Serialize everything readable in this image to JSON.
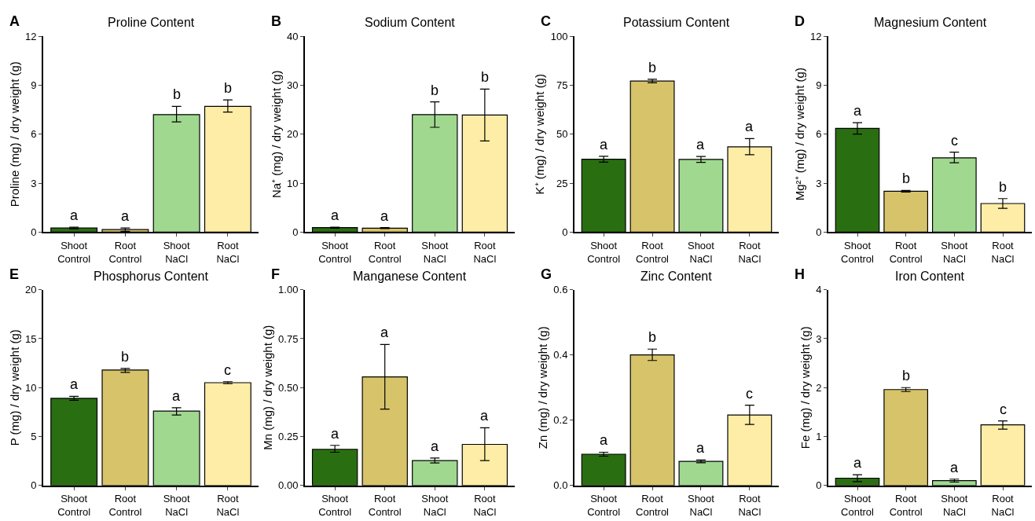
{
  "chart_data": [
    {
      "type": "bar",
      "title": "Proline Content",
      "ylabel": "Proline (mg) / dry weight (g)",
      "categories": [
        "Shoot\nControl",
        "Root\nControl",
        "Shoot\nNaCl",
        "Root\nNaCl"
      ],
      "colors": [
        "#2a6e12",
        "#d7c36a",
        "#a0d890",
        "#fdeda6"
      ],
      "values": [
        0.25,
        0.15,
        7.2,
        7.7
      ],
      "errors": [
        0.05,
        0.1,
        [
          6.75,
          7.7
        ],
        [
          7.35,
          8.1
        ]
      ],
      "ylim": [
        0,
        12
      ],
      "yticks": [
        0,
        3,
        6,
        9,
        12
      ],
      "annotations": [
        "A",
        {
          "text": "a",
          "x": "Shoot\nControl",
          "y": 0.3
        },
        {
          "text": "a",
          "x": "Root\nControl",
          "y": 0.25
        },
        {
          "text": "b",
          "x": "Shoot\nNaCl",
          "y": 7.7
        },
        {
          "text": "b",
          "x": "Root\nNaCl",
          "y": 8.1
        }
      ]
    },
    {
      "type": "bar",
      "title": "Sodium Content",
      "ylabel": "Na⁺ (mg) / dry weight (g)",
      "categories": [
        "Shoot\nControl",
        "Root\nControl",
        "Shoot\nNaCl",
        "Root\nNaCl"
      ],
      "colors": [
        "#2a6e12",
        "#d7c36a",
        "#a0d890",
        "#fdeda6"
      ],
      "values": [
        0.9,
        0.8,
        24,
        23.9
      ],
      "errors": [
        0.1,
        0.1,
        [
          21.4,
          26.6
        ],
        [
          18.6,
          29.2
        ]
      ],
      "ylim": [
        0,
        40
      ],
      "yticks": [
        0,
        10,
        20,
        30,
        40
      ],
      "annotations": [
        "B",
        {
          "text": "a",
          "x": "Shoot\nControl",
          "y": 1
        },
        {
          "text": "a",
          "x": "Root\nControl",
          "y": 0.9
        },
        {
          "text": "b",
          "x": "Shoot\nNaCl",
          "y": 26.6
        },
        {
          "text": "b",
          "x": "Root\nNaCl",
          "y": 29.2
        }
      ]
    },
    {
      "type": "bar",
      "title": "Potassium Content",
      "ylabel": "K⁺ (mg) / dry weight (g)",
      "categories": [
        "Shoot\nControl",
        "Root\nControl",
        "Shoot\nNaCl",
        "Root\nNaCl"
      ],
      "colors": [
        "#2a6e12",
        "#d7c36a",
        "#a0d890",
        "#fdeda6"
      ],
      "values": [
        37.2,
        77.1,
        37.1,
        43.5
      ],
      "errors": [
        [
          35.7,
          38.7
        ],
        [
          76.2,
          78
        ],
        [
          35.6,
          38.6
        ],
        [
          39.5,
          47.7
        ]
      ],
      "ylim": [
        0,
        100
      ],
      "yticks": [
        0,
        25,
        50,
        75,
        100
      ],
      "annotations": [
        "C",
        {
          "text": "a",
          "x": "Shoot\nControl",
          "y": 38.7
        },
        {
          "text": "b",
          "x": "Root\nControl",
          "y": 78
        },
        {
          "text": "a",
          "x": "Shoot\nNaCl",
          "y": 38.6
        },
        {
          "text": "a",
          "x": "Root\nNaCl",
          "y": 47.7
        }
      ]
    },
    {
      "type": "bar",
      "title": "Magnesium Content",
      "ylabel": "Mg²⁺ (mg) / dry weight (g)",
      "categories": [
        "Shoot\nControl",
        "Root\nControl",
        "Shoot\nNaCl",
        "Root\nNaCl"
      ],
      "colors": [
        "#2a6e12",
        "#d7c36a",
        "#a0d890",
        "#fdeda6"
      ],
      "values": [
        6.35,
        2.5,
        4.55,
        1.75
      ],
      "errors": [
        [
          6.0,
          6.7
        ],
        [
          2.45,
          2.55
        ],
        [
          4.25,
          4.9
        ],
        [
          1.45,
          2.05
        ]
      ],
      "ylim": [
        0,
        12
      ],
      "yticks": [
        0,
        3,
        6,
        9,
        12
      ],
      "annotations": [
        "D",
        {
          "text": "a",
          "x": "Shoot\nControl",
          "y": 6.7
        },
        {
          "text": "b",
          "x": "Root\nControl",
          "y": 2.55
        },
        {
          "text": "c",
          "x": "Shoot\nNaCl",
          "y": 4.9
        },
        {
          "text": "b",
          "x": "Root\nNaCl",
          "y": 2.05
        }
      ]
    },
    {
      "type": "bar",
      "title": "Phosphorus Content",
      "ylabel": "P (mg) / dry weight (g)",
      "categories": [
        "Shoot\nControl",
        "Root\nControl",
        "Shoot\nNaCl",
        "Root\nNaCl"
      ],
      "colors": [
        "#2a6e12",
        "#d7c36a",
        "#a0d890",
        "#fdeda6"
      ],
      "values": [
        8.9,
        11.8,
        7.6,
        10.5
      ],
      "errors": [
        [
          8.7,
          9.1
        ],
        [
          11.55,
          11.95
        ],
        [
          7.2,
          7.95
        ],
        [
          10.4,
          10.6
        ]
      ],
      "ylim": [
        0,
        20
      ],
      "yticks": [
        0,
        5,
        10,
        15,
        20
      ],
      "annotations": [
        "E",
        {
          "text": "a",
          "x": "Shoot\nControl",
          "y": 9.1
        },
        {
          "text": "b",
          "x": "Root\nControl",
          "y": 11.95
        },
        {
          "text": "a",
          "x": "Shoot\nNaCl",
          "y": 7.95
        },
        {
          "text": "c",
          "x": "Root\nNaCl",
          "y": 10.6
        }
      ]
    },
    {
      "type": "bar",
      "title": "Manganese Content",
      "ylabel": "Mn (mg) / dry weight (g)",
      "categories": [
        "Shoot\nControl",
        "Root\nControl",
        "Shoot\nNaCl",
        "Root\nNaCl"
      ],
      "colors": [
        "#2a6e12",
        "#d7c36a",
        "#a0d890",
        "#fdeda6"
      ],
      "values": [
        0.185,
        0.555,
        0.127,
        0.21
      ],
      "errors": [
        [
          0.17,
          0.205
        ],
        [
          0.39,
          0.72
        ],
        [
          0.115,
          0.14
        ],
        [
          0.127,
          0.295
        ]
      ],
      "ylim": [
        0,
        1
      ],
      "yticks": [
        {
          "value": 0,
          "label": "0.00"
        },
        {
          "value": 0.25,
          "label": "0.25"
        },
        {
          "value": 0.5,
          "label": "0.50"
        },
        {
          "value": 0.75,
          "label": "0.75"
        },
        {
          "value": 1,
          "label": "1.00"
        }
      ],
      "annotations": [
        "F",
        {
          "text": "a",
          "x": "Shoot\nControl",
          "y": 0.205
        },
        {
          "text": "a",
          "x": "Root\nControl",
          "y": 0.72
        },
        {
          "text": "a",
          "x": "Shoot\nNaCl",
          "y": 0.14
        },
        {
          "text": "a",
          "x": "Root\nNaCl",
          "y": 0.295
        }
      ]
    },
    {
      "type": "bar",
      "title": "Zinc Content",
      "ylabel": "Zn (mg) / dry weight (g)",
      "categories": [
        "Shoot\nControl",
        "Root\nControl",
        "Shoot\nNaCl",
        "Root\nNaCl"
      ],
      "colors": [
        "#2a6e12",
        "#d7c36a",
        "#a0d890",
        "#fdeda6"
      ],
      "values": [
        0.096,
        0.4,
        0.074,
        0.216
      ],
      "errors": [
        [
          0.09,
          0.102
        ],
        [
          0.383,
          0.418
        ],
        [
          0.07,
          0.078
        ],
        [
          0.187,
          0.246
        ]
      ],
      "ylim": [
        0,
        0.6
      ],
      "yticks": [
        {
          "value": 0,
          "label": "0.0"
        },
        {
          "value": 0.2,
          "label": "0.2"
        },
        {
          "value": 0.4,
          "label": "0.4"
        },
        {
          "value": 0.6,
          "label": "0.6"
        }
      ],
      "annotations": [
        "G",
        {
          "text": "a",
          "x": "Shoot\nControl",
          "y": 0.102
        },
        {
          "text": "b",
          "x": "Root\nControl",
          "y": 0.418
        },
        {
          "text": "a",
          "x": "Shoot\nNaCl",
          "y": 0.078
        },
        {
          "text": "c",
          "x": "Root\nNaCl",
          "y": 0.246
        }
      ]
    },
    {
      "type": "bar",
      "title": "Iron Content",
      "ylabel": "Fe (mg) / dry weight (g)",
      "categories": [
        "Shoot\nControl",
        "Root\nControl",
        "Shoot\nNaCl",
        "Root\nNaCl"
      ],
      "colors": [
        "#2a6e12",
        "#d7c36a",
        "#a0d890",
        "#fdeda6"
      ],
      "values": [
        0.15,
        1.96,
        0.1,
        1.24
      ],
      "errors": [
        [
          0.08,
          0.22
        ],
        [
          1.92,
          2.0
        ],
        [
          0.07,
          0.13
        ],
        [
          1.15,
          1.32
        ]
      ],
      "ylim": [
        0,
        4
      ],
      "yticks": [
        0,
        1,
        2,
        3,
        4
      ],
      "annotations": [
        "H",
        {
          "text": "a",
          "x": "Shoot\nControl",
          "y": 0.22
        },
        {
          "text": "b",
          "x": "Root\nControl",
          "y": 2.0
        },
        {
          "text": "a",
          "x": "Shoot\nNaCl",
          "y": 0.13
        },
        {
          "text": "c",
          "x": "Root\nNaCl",
          "y": 1.32
        }
      ]
    }
  ]
}
